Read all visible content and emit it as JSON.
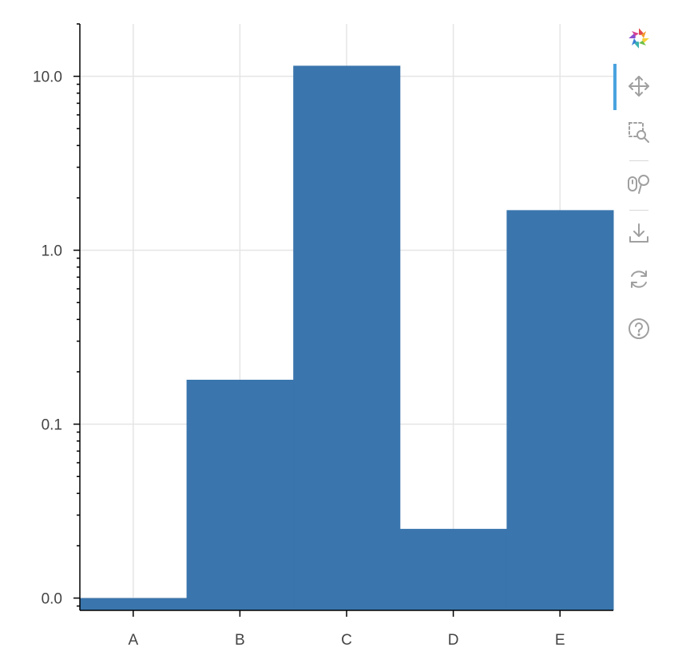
{
  "chart_data": {
    "type": "bar",
    "y_scale": "log",
    "categories": [
      "A",
      "B",
      "C",
      "D",
      "E"
    ],
    "values": [
      0.01,
      0.18,
      11.5,
      0.025,
      1.7
    ],
    "y_ticks": [
      0.01,
      0.1,
      1,
      10
    ],
    "y_tick_labels": [
      "0.0",
      "0.1",
      "1.0",
      "10.0"
    ],
    "ylim": [
      0.0085,
      20
    ],
    "bar_color": "#3a75ad",
    "grid": true,
    "title": "",
    "xlabel": "",
    "ylabel": ""
  },
  "toolbar": {
    "tools": [
      {
        "name": "bokeh-logo",
        "icon": "bokeh-logo-icon"
      },
      {
        "name": "pan",
        "icon": "pan-icon",
        "active": true
      },
      {
        "name": "box-zoom",
        "icon": "box-zoom-icon"
      },
      {
        "name": "wheel-zoom",
        "icon": "wheel-zoom-icon"
      },
      {
        "name": "save",
        "icon": "save-icon"
      },
      {
        "name": "reset",
        "icon": "reset-icon"
      },
      {
        "name": "help",
        "icon": "help-icon"
      }
    ],
    "accent_color": "#4aa3df",
    "icon_color": "#a0a0a0"
  }
}
